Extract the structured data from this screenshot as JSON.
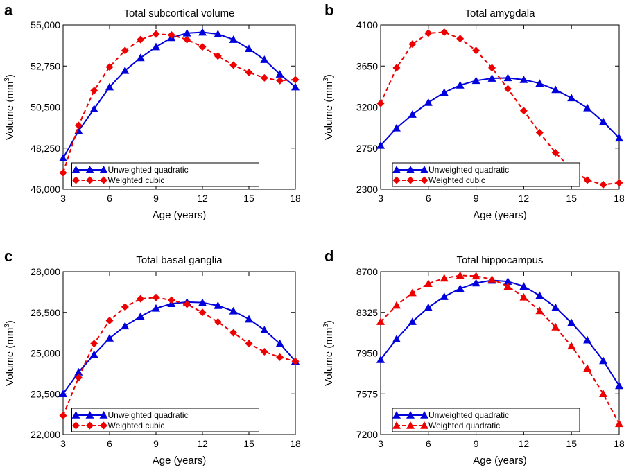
{
  "chart_data": [
    {
      "id": "a",
      "type": "line",
      "panel_label": "a",
      "title": "Total subcortical volume",
      "xlabel": "Age (years)",
      "ylabel": "Volume (mm",
      "ylabel_sup": "3",
      "ylabel_end": ")",
      "xlim": [
        3,
        18
      ],
      "ylim": [
        46000,
        55000
      ],
      "xticks": [
        3,
        6,
        9,
        12,
        15,
        18
      ],
      "xtick_labels": [
        "3",
        "6",
        "9",
        "12",
        "15",
        "18"
      ],
      "yticks": [
        46000,
        48250,
        50500,
        52750,
        55000
      ],
      "ytick_labels": [
        "46,000",
        "48,250",
        "50,500",
        "52,750",
        "55,000"
      ],
      "legend_position": "bottom-center",
      "x": [
        3,
        4,
        5,
        6,
        7,
        8,
        9,
        10,
        11,
        12,
        13,
        14,
        15,
        16,
        17,
        18
      ],
      "series": [
        {
          "name": "Unweighted quadratic",
          "color": "#0000dd",
          "dash": "solid",
          "marker": "triangle",
          "values": [
            47700,
            49200,
            50400,
            51600,
            52500,
            53200,
            53800,
            54300,
            54550,
            54600,
            54500,
            54200,
            53700,
            53100,
            52300,
            51600
          ]
        },
        {
          "name": "Weighted cubic",
          "color": "#ee0000",
          "dash": "dashed",
          "marker": "diamond",
          "values": [
            46900,
            49500,
            51400,
            52700,
            53600,
            54200,
            54500,
            54450,
            54200,
            53800,
            53300,
            52800,
            52400,
            52100,
            51950,
            52000
          ]
        }
      ]
    },
    {
      "id": "b",
      "type": "line",
      "panel_label": "b",
      "title": "Total amygdala",
      "xlabel": "Age (years)",
      "ylabel": "Volume (mm",
      "ylabel_sup": "3",
      "ylabel_end": ")",
      "xlim": [
        3,
        18
      ],
      "ylim": [
        2300,
        4100
      ],
      "xticks": [
        3,
        6,
        9,
        12,
        15,
        18
      ],
      "xtick_labels": [
        "3",
        "6",
        "9",
        "12",
        "15",
        "18"
      ],
      "yticks": [
        2300,
        2750,
        3200,
        3650,
        4100
      ],
      "ytick_labels": [
        "2300",
        "2750",
        "3200",
        "3650",
        "4100"
      ],
      "legend_position": "bottom-center",
      "x": [
        3,
        4,
        5,
        6,
        7,
        8,
        9,
        10,
        11,
        12,
        13,
        14,
        15,
        16,
        17,
        18
      ],
      "series": [
        {
          "name": "Unweighted quadratic",
          "color": "#0000dd",
          "dash": "solid",
          "marker": "triangle",
          "values": [
            2780,
            2970,
            3120,
            3250,
            3360,
            3440,
            3490,
            3515,
            3520,
            3500,
            3460,
            3390,
            3300,
            3190,
            3040,
            2860
          ]
        },
        {
          "name": "Weighted cubic",
          "color": "#ee0000",
          "dash": "dashed",
          "marker": "diamond",
          "values": [
            3240,
            3630,
            3890,
            4010,
            4020,
            3950,
            3820,
            3630,
            3400,
            3160,
            2920,
            2700,
            2520,
            2400,
            2350,
            2370
          ]
        }
      ]
    },
    {
      "id": "c",
      "type": "line",
      "panel_label": "c",
      "title": "Total basal ganglia",
      "xlabel": "Age (years)",
      "ylabel": "Volume (mm",
      "ylabel_sup": "3",
      "ylabel_end": ")",
      "xlim": [
        3,
        18
      ],
      "ylim": [
        22000,
        28000
      ],
      "xticks": [
        3,
        6,
        9,
        12,
        15,
        18
      ],
      "xtick_labels": [
        "3",
        "6",
        "9",
        "12",
        "15",
        "18"
      ],
      "yticks": [
        22000,
        23500,
        25000,
        26500,
        28000
      ],
      "ytick_labels": [
        "22,000",
        "23,500",
        "25,000",
        "26,500",
        "28,000"
      ],
      "legend_position": "bottom-center",
      "x": [
        3,
        4,
        5,
        6,
        7,
        8,
        9,
        10,
        11,
        12,
        13,
        14,
        15,
        16,
        17,
        18
      ],
      "series": [
        {
          "name": "Unweighted quadratic",
          "color": "#0000dd",
          "dash": "solid",
          "marker": "triangle",
          "values": [
            23500,
            24300,
            24950,
            25550,
            26000,
            26350,
            26650,
            26820,
            26880,
            26860,
            26750,
            26550,
            26250,
            25850,
            25350,
            24700
          ]
        },
        {
          "name": "Weighted cubic",
          "color": "#ee0000",
          "dash": "dashed",
          "marker": "diamond",
          "values": [
            22700,
            24100,
            25350,
            26200,
            26700,
            27000,
            27050,
            26950,
            26800,
            26500,
            26150,
            25750,
            25350,
            25050,
            24850,
            24700
          ]
        }
      ]
    },
    {
      "id": "d",
      "type": "line",
      "panel_label": "d",
      "title": "Total hippocampus",
      "xlabel": "Age (years)",
      "ylabel": "Volume (mm",
      "ylabel_sup": "3",
      "ylabel_end": ")",
      "xlim": [
        3,
        18
      ],
      "ylim": [
        7200,
        8700
      ],
      "xticks": [
        3,
        6,
        9,
        12,
        15,
        18
      ],
      "xtick_labels": [
        "3",
        "6",
        "9",
        "12",
        "15",
        "18"
      ],
      "yticks": [
        7200,
        7575,
        7950,
        8325,
        8700
      ],
      "ytick_labels": [
        "7200",
        "7575",
        "7950",
        "8325",
        "8700"
      ],
      "legend_position": "bottom-center",
      "x": [
        3,
        4,
        5,
        6,
        7,
        8,
        9,
        10,
        11,
        12,
        13,
        14,
        15,
        16,
        17,
        18
      ],
      "series": [
        {
          "name": "Unweighted quadratic",
          "color": "#0000dd",
          "dash": "solid",
          "marker": "triangle",
          "values": [
            7890,
            8080,
            8240,
            8370,
            8470,
            8545,
            8595,
            8620,
            8610,
            8565,
            8480,
            8370,
            8230,
            8070,
            7880,
            7650
          ]
        },
        {
          "name": "Weighted quadratic",
          "color": "#ee0000",
          "dash": "dashed",
          "marker": "triangle",
          "values": [
            8240,
            8390,
            8505,
            8590,
            8640,
            8665,
            8660,
            8630,
            8565,
            8465,
            8340,
            8190,
            8015,
            7810,
            7575,
            7300
          ]
        }
      ]
    }
  ]
}
